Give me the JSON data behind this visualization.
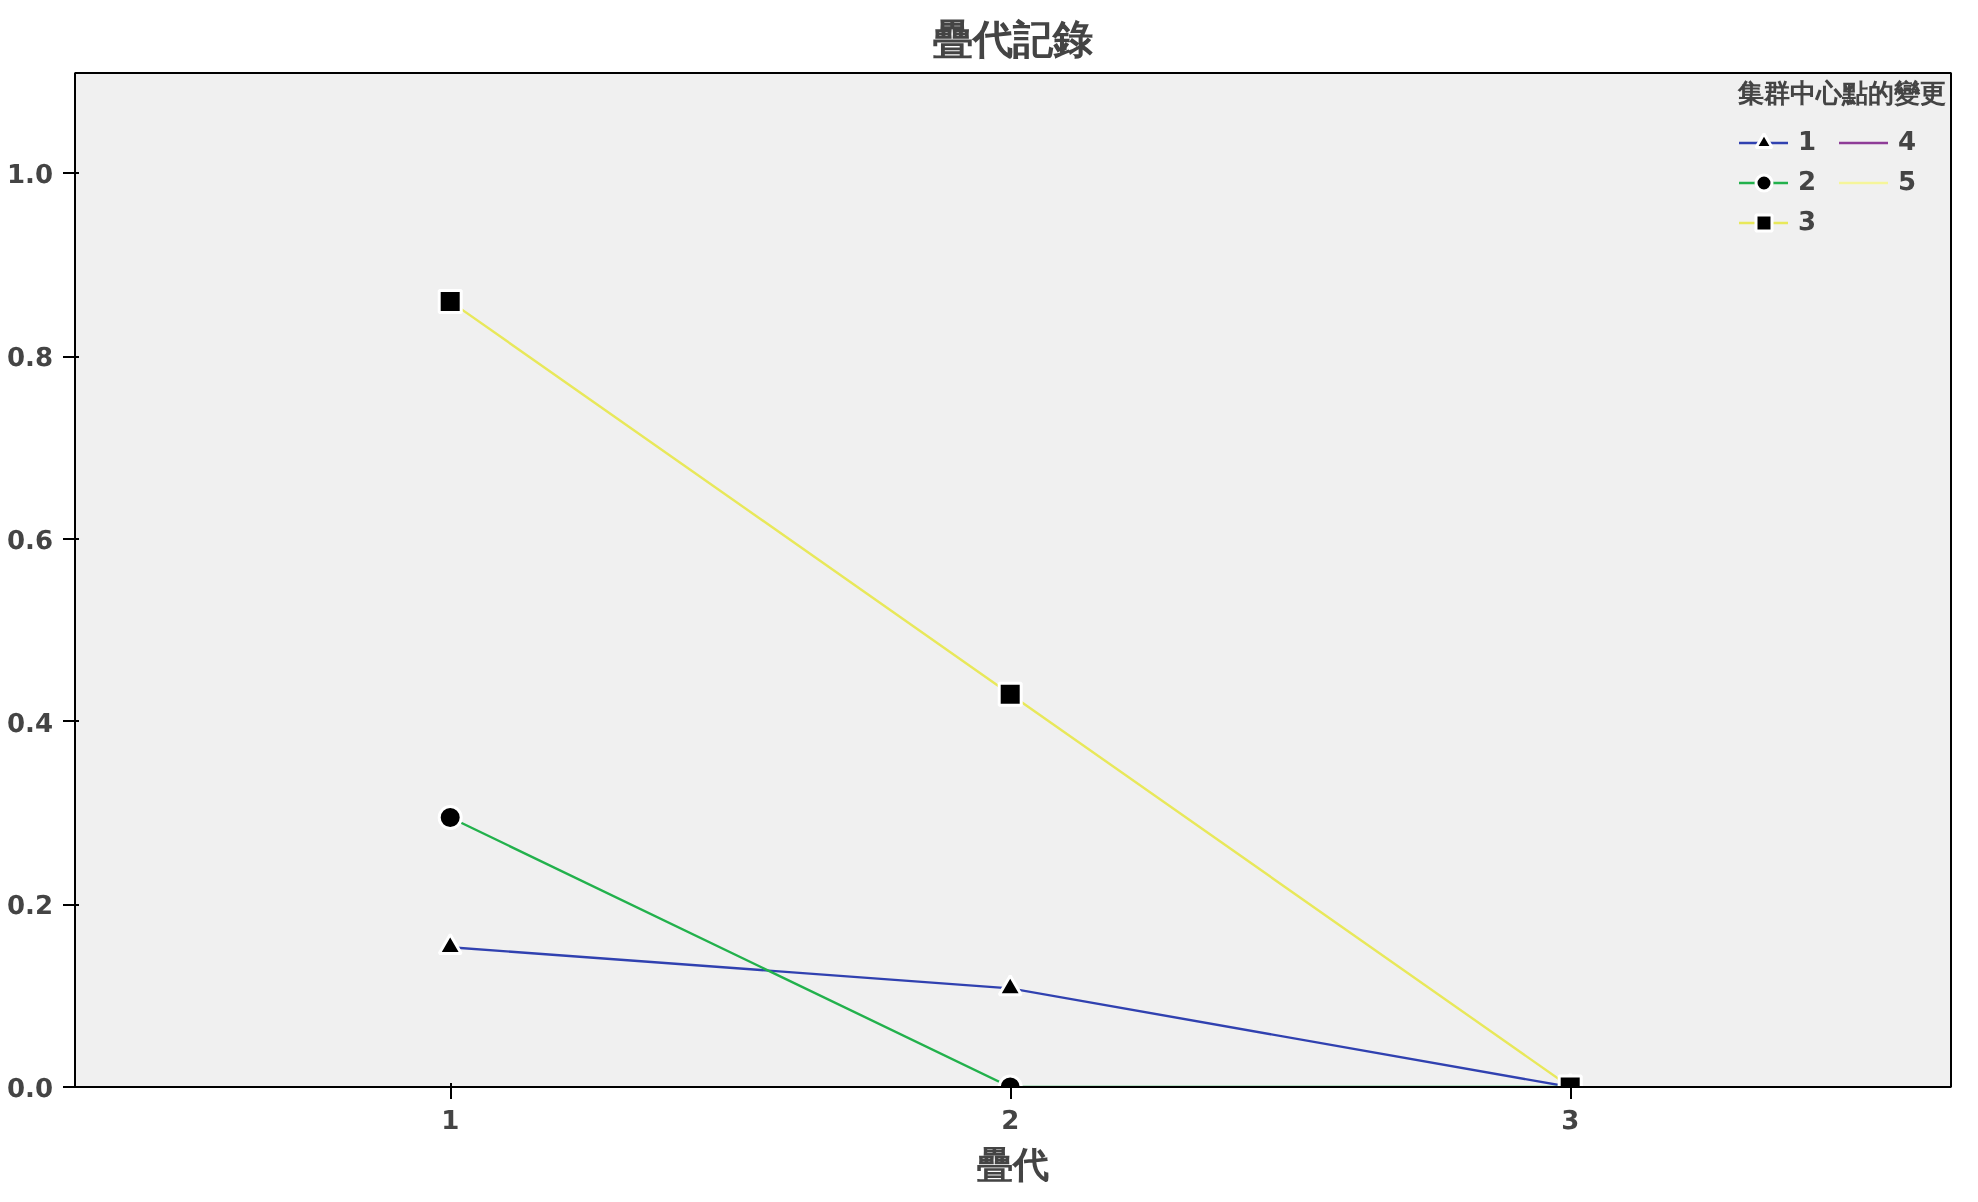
{
  "chart_data": {
    "type": "line",
    "title": "疊代記錄",
    "xlabel": "疊代",
    "legend_title": "集群中心點的變更",
    "x": [
      1,
      2,
      3
    ],
    "xlim": [
      0.33,
      3.68
    ],
    "xticks": [
      1,
      2,
      3
    ],
    "ylim": [
      0,
      1.11
    ],
    "yticks": [
      {
        "value": 0,
        "label": "0.0"
      },
      {
        "value": 0.2,
        "label": "0.2"
      },
      {
        "value": 0.4,
        "label": "0.4"
      },
      {
        "value": 0.6,
        "label": "0.6"
      },
      {
        "value": 0.8,
        "label": "0.8"
      },
      {
        "value": 1.0,
        "label": "1.0"
      }
    ],
    "grid": false,
    "legend": "top right",
    "series": [
      {
        "name": "1",
        "color": "#3041b0",
        "values": [
          0.153,
          0.108,
          0.0
        ],
        "marker": "triangle"
      },
      {
        "name": "2",
        "color": "#22b14c",
        "values": [
          0.295,
          0.0,
          0.0
        ],
        "marker": "circle"
      },
      {
        "name": "3",
        "color": "#e8e85a",
        "values": [
          0.86,
          0.43,
          0.0
        ],
        "marker": "square"
      },
      {
        "name": "4",
        "color": "#8e3c97",
        "values": [
          null,
          null,
          null
        ]
      },
      {
        "name": "5",
        "color": "#f5f59a",
        "values": [
          null,
          null,
          null
        ]
      }
    ]
  }
}
